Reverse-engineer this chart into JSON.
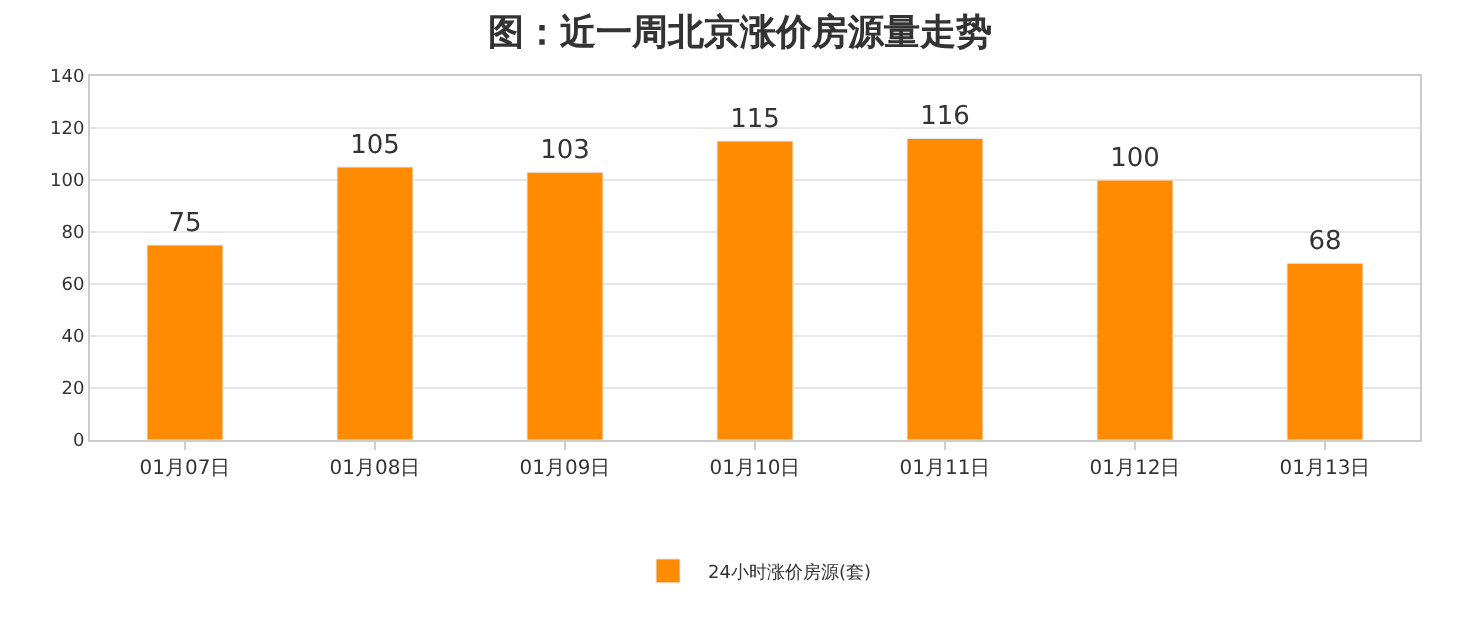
{
  "chart_data": {
    "type": "bar",
    "title": "图：近一周北京涨价房源量走势",
    "categories": [
      "01月07日",
      "01月08日",
      "01月09日",
      "01月10日",
      "01月11日",
      "01月12日",
      "01月13日"
    ],
    "series": [
      {
        "name": "24小时涨价房源(套)",
        "color": "#ff8c00",
        "values": [
          75,
          105,
          103,
          115,
          116,
          100,
          68
        ]
      }
    ],
    "ylim": [
      0,
      140
    ],
    "yticks": [
      0,
      20,
      40,
      60,
      80,
      100,
      120,
      140
    ],
    "grid": "y",
    "legend": "bottom",
    "data_labels": true
  }
}
